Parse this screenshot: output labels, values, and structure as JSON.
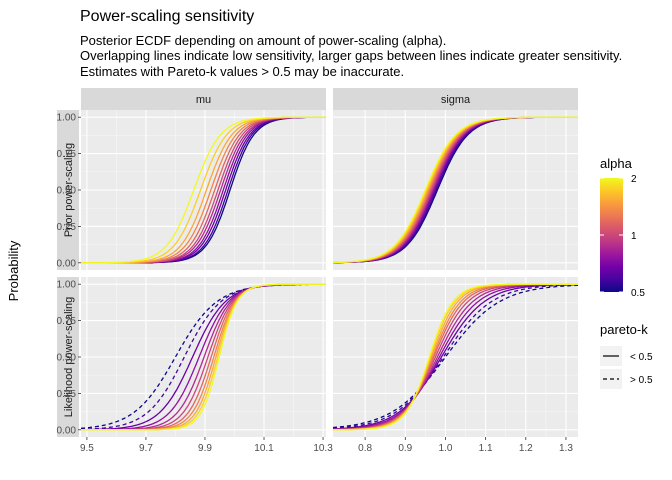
{
  "chart_data": {
    "type": "line",
    "title": "Power-scaling sensitivity",
    "subtitle_lines": [
      "Posterior ECDF depending on amount of power-scaling (alpha).",
      "Overlapping lines indicate low sensitivity, larger gaps between lines indicate greater sensitivity.",
      "Estimates with Pareto-k values > 0.5 may be inaccurate."
    ],
    "ylabel": "Probability",
    "facet_columns": [
      "mu",
      "sigma"
    ],
    "facet_rows": [
      "Prior power-scaling",
      "Likelihood power-scaling"
    ],
    "ylim": [
      0,
      1
    ],
    "y_ticks": [
      "0.00",
      "0.25",
      "0.50",
      "0.75",
      "1.00"
    ],
    "x_axes": [
      {
        "xlim": [
          9.48,
          10.31
        ],
        "ticks": [
          9.5,
          9.7,
          9.9,
          10.1,
          10.3
        ],
        "tick_labels": [
          "9.5",
          "9.7",
          "9.9",
          "10.1",
          "10.3"
        ]
      },
      {
        "xlim": [
          0.72,
          1.33
        ],
        "ticks": [
          0.8,
          0.9,
          1.0,
          1.1,
          1.2,
          1.3
        ],
        "tick_labels": [
          "0.8",
          "0.9",
          "1.0",
          "1.1",
          "1.2",
          "1.3"
        ]
      }
    ],
    "alpha_values": [
      0.5,
      0.574,
      0.66,
      0.758,
      0.871,
      1.0,
      1.149,
      1.32,
      1.516,
      1.741,
      2.0
    ],
    "panels": [
      {
        "row": "Prior power-scaling",
        "column": "mu",
        "dashed_alpha_count": 0,
        "center_by_alpha": [
          9.985,
          9.978,
          9.97,
          9.962,
          9.953,
          9.944,
          9.933,
          9.92,
          9.905,
          9.885,
          9.862
        ],
        "spread_by_alpha": [
          0.069,
          0.069,
          0.07,
          0.07,
          0.071,
          0.071,
          0.072,
          0.073,
          0.074,
          0.076,
          0.078
        ]
      },
      {
        "row": "Prior power-scaling",
        "column": "sigma",
        "dashed_alpha_count": 0,
        "center_by_alpha": [
          0.98,
          0.977,
          0.974,
          0.971,
          0.968,
          0.965,
          0.962,
          0.959,
          0.956,
          0.953,
          0.95
        ],
        "spread_by_alpha": [
          0.065,
          0.065,
          0.065,
          0.065,
          0.065,
          0.065,
          0.065,
          0.065,
          0.065,
          0.065,
          0.065
        ]
      },
      {
        "row": "Likelihood power-scaling",
        "column": "mu",
        "dashed_alpha_count": 2,
        "center_by_alpha": [
          9.8,
          9.83,
          9.858,
          9.88,
          9.897,
          9.91,
          9.921,
          9.93,
          9.937,
          9.943,
          9.948
        ],
        "spread_by_alpha": [
          0.12,
          0.106,
          0.095,
          0.085,
          0.077,
          0.071,
          0.066,
          0.062,
          0.058,
          0.055,
          0.052
        ]
      },
      {
        "row": "Likelihood power-scaling",
        "column": "sigma",
        "dashed_alpha_count": 2,
        "center_by_alpha": [
          1.0,
          0.995,
          0.99,
          0.985,
          0.98,
          0.975,
          0.971,
          0.968,
          0.965,
          0.962,
          0.96
        ],
        "spread_by_alpha": [
          0.115,
          0.102,
          0.091,
          0.082,
          0.075,
          0.069,
          0.064,
          0.06,
          0.056,
          0.053,
          0.05
        ]
      }
    ],
    "legend": {
      "placement": "right",
      "alpha_title": "alpha",
      "alpha_tick_labels": [
        "0.5",
        "1",
        "2"
      ],
      "alpha_tick_values": [
        0.5,
        1,
        2
      ],
      "pareto_title": "pareto-k",
      "pareto_items": [
        "< 0.5",
        "> 0.5"
      ]
    },
    "grid": true,
    "colors": {
      "panel_background": "#ebebeb",
      "strip_background": "#d9d9d9",
      "grid": "#ffffff",
      "palette": [
        "#0d0887",
        "#47039f",
        "#7301a8",
        "#9c179e",
        "#bd3786",
        "#d8576b",
        "#ed7953",
        "#fa9e3b",
        "#fdc926",
        "#f0f921"
      ]
    }
  }
}
